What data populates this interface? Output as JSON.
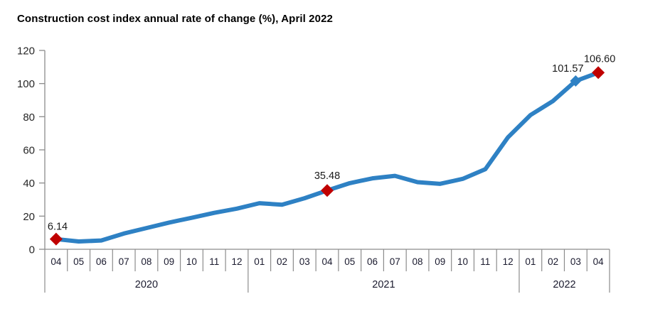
{
  "title": "Construction cost index annual rate of change (%), April 2022",
  "colors": {
    "line": "#2e81c4",
    "marker_red": "#c00000",
    "marker_blue": "#2e81c4",
    "axis": "#8c8c8c",
    "tick_text": "#262626",
    "month_text": "#1a1a2e",
    "label_text": "#1a1a1a"
  },
  "chart_data": {
    "type": "line",
    "title": "Construction cost index annual rate of change (%), April 2022",
    "xlabel": "",
    "ylabel": "",
    "ylim": [
      0,
      120
    ],
    "yticks": [
      0,
      20,
      40,
      60,
      80,
      100,
      120
    ],
    "grid": false,
    "legend": "none",
    "categories": [
      "04",
      "05",
      "06",
      "07",
      "08",
      "09",
      "10",
      "11",
      "12",
      "01",
      "02",
      "03",
      "04",
      "05",
      "06",
      "07",
      "08",
      "09",
      "10",
      "11",
      "12",
      "01",
      "02",
      "03",
      "04"
    ],
    "year_groups": [
      {
        "label": "2020",
        "count": 9
      },
      {
        "label": "2021",
        "count": 12
      },
      {
        "label": "2022",
        "count": 4
      }
    ],
    "series": [
      {
        "name": "Construction cost index annual rate of change (%)",
        "values": [
          6.14,
          4.7,
          5.3,
          9.5,
          12.8,
          16.1,
          19.0,
          22.0,
          24.5,
          27.8,
          26.9,
          30.8,
          35.48,
          39.9,
          42.8,
          44.3,
          40.5,
          39.5,
          42.5,
          48.3,
          67.5,
          81.0,
          89.5,
          101.57,
          106.6
        ]
      }
    ],
    "annotations": [
      {
        "index": 0,
        "label": "6.14",
        "marker": "red"
      },
      {
        "index": 12,
        "label": "35.48",
        "marker": "red"
      },
      {
        "index": 23,
        "label": "101.57",
        "marker": "blue"
      },
      {
        "index": 24,
        "label": "106.60",
        "marker": "red"
      }
    ]
  }
}
